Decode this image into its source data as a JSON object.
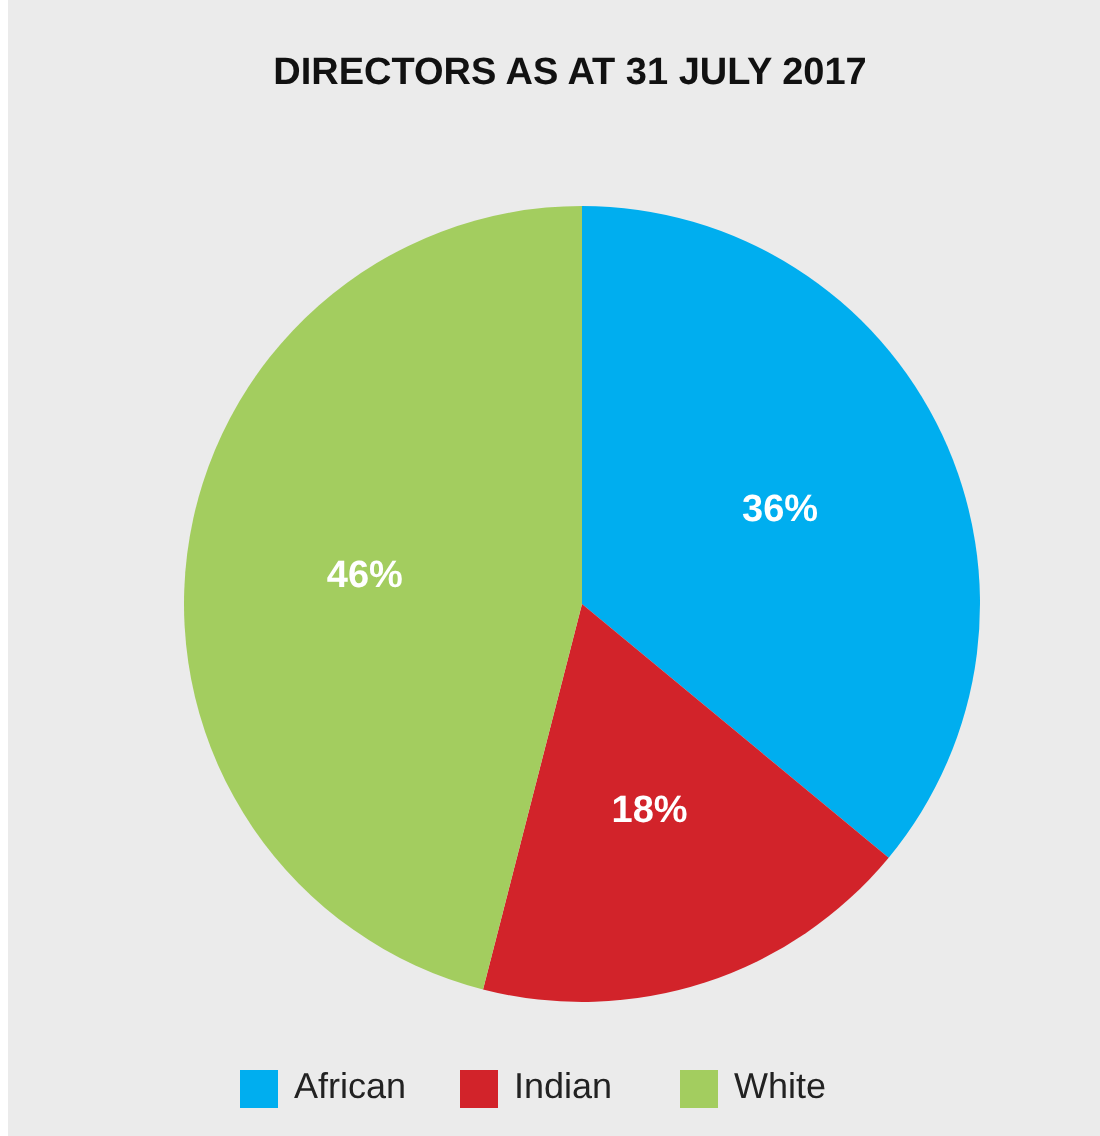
{
  "chart_data": {
    "type": "pie",
    "title": "DIRECTORS AS AT 31 JULY 2017",
    "categories": [
      "African",
      "Indian",
      "White"
    ],
    "values": [
      36,
      18,
      46
    ],
    "colors": [
      "#00aeef",
      "#d2232a",
      "#a3cd5f"
    ],
    "value_labels": [
      "36%",
      "18%",
      "46%"
    ],
    "legend": "bottom"
  }
}
